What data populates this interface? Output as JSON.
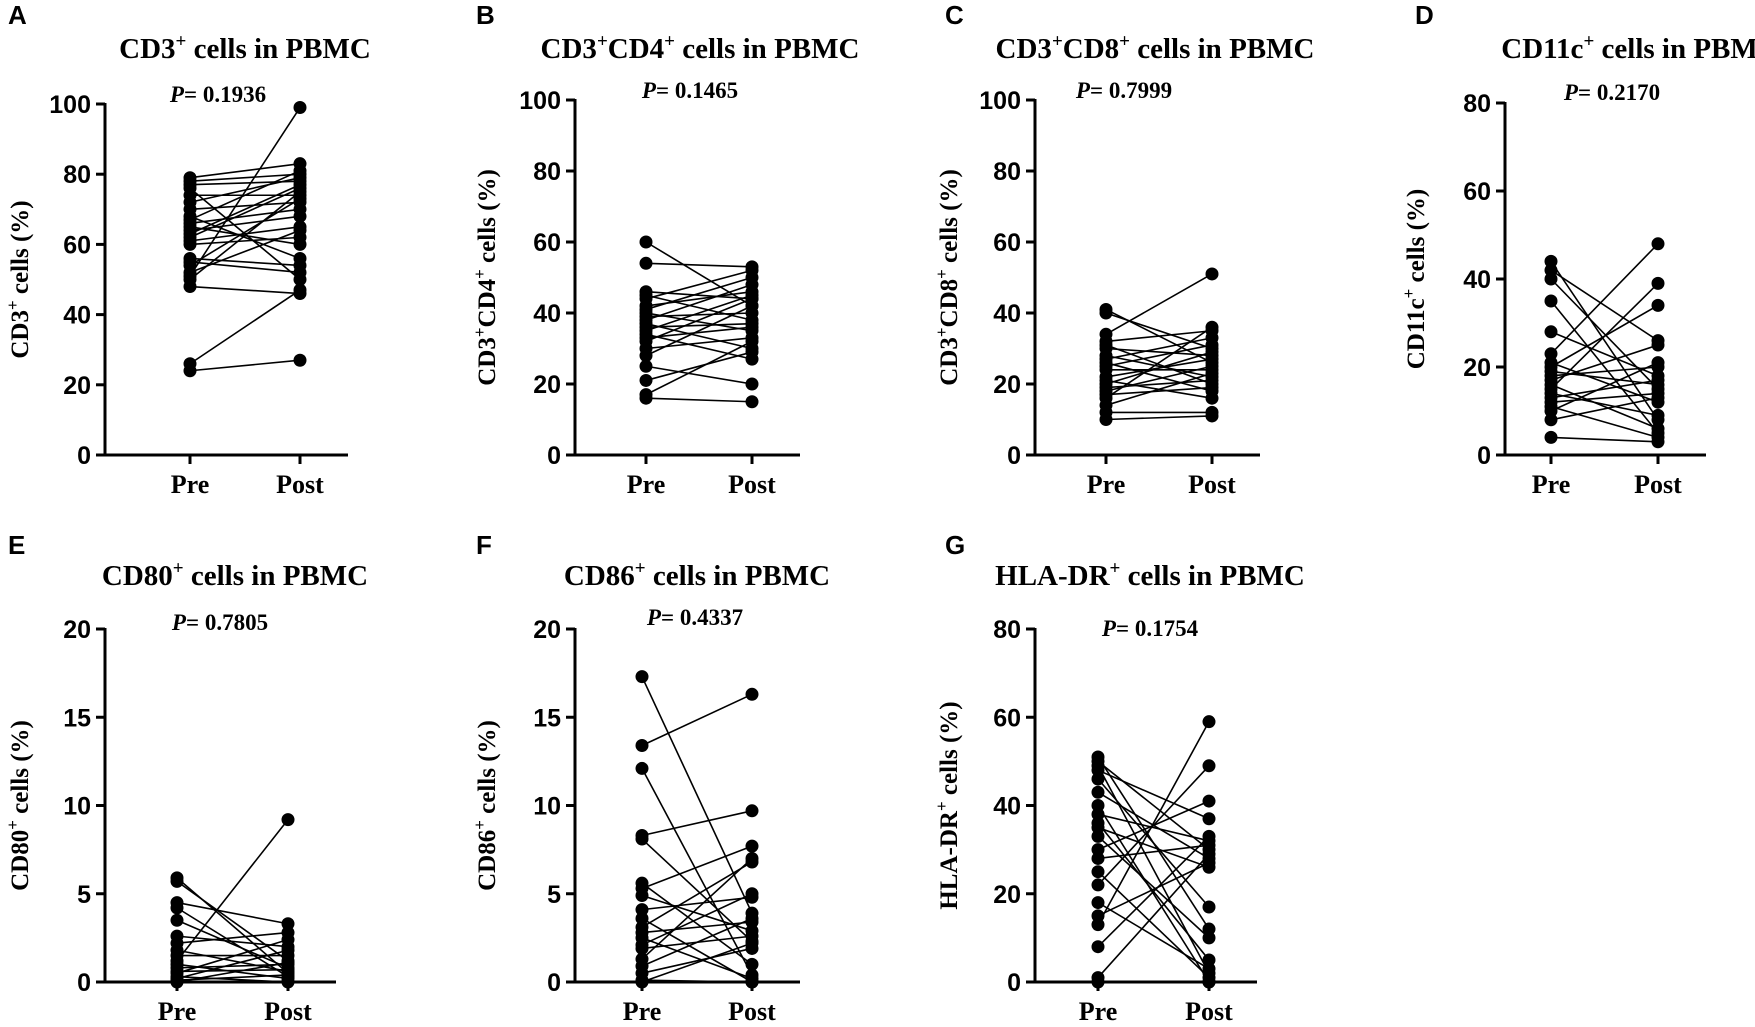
{
  "figure": {
    "panels": [
      "A",
      "B",
      "C",
      "D",
      "E",
      "F",
      "G"
    ]
  },
  "chart_data": [
    {
      "panel": "A",
      "type": "scatter",
      "subtype": "paired-before-after",
      "title": "CD3",
      "title_sup": "+",
      "title_suffix": " cells in PBMC",
      "p_label": "P",
      "p_value": "= 0.1936",
      "ylabel": "CD3",
      "ylabel_sup": "+",
      "ylabel_suffix": " cells (%)",
      "categories": [
        "Pre",
        "Post"
      ],
      "ylim": [
        0,
        100
      ],
      "yticks": [
        "0",
        "20",
        "40",
        "60",
        "80",
        "100"
      ],
      "pre": [
        79,
        78,
        77,
        76,
        74,
        72,
        70,
        68,
        67,
        66,
        65,
        64,
        63,
        62,
        61,
        60,
        56,
        55,
        54,
        52,
        51,
        50,
        48,
        26,
        24
      ],
      "post": [
        83,
        80,
        78,
        50,
        74,
        79,
        72,
        56,
        81,
        70,
        60,
        68,
        77,
        76,
        65,
        62,
        54,
        52,
        73,
        64,
        99,
        75,
        46,
        47,
        27
      ]
    },
    {
      "panel": "B",
      "type": "scatter",
      "subtype": "paired-before-after",
      "title": "CD3",
      "title_sup": "+",
      "title_mid": "CD4",
      "title_sup2": "+",
      "title_suffix": " cells in PBMC",
      "p_label": "P",
      "p_value": "= 0.1465",
      "ylabel": "CD3",
      "ylabel_sup": "+",
      "ylabel_mid": "CD4",
      "ylabel_sup2": "+",
      "ylabel_suffix": " cells (%)",
      "categories": [
        "Pre",
        "Post"
      ],
      "ylim": [
        0,
        100
      ],
      "yticks": [
        "0",
        "20",
        "40",
        "60",
        "80",
        "100"
      ],
      "pre": [
        60,
        54,
        46,
        45,
        44,
        42,
        41,
        40,
        39,
        38,
        37,
        36,
        35,
        34,
        33,
        32,
        30,
        28,
        25,
        21,
        17,
        16
      ],
      "post": [
        42,
        53,
        44,
        38,
        52,
        46,
        50,
        35,
        40,
        48,
        30,
        37,
        45,
        27,
        36,
        44,
        33,
        42,
        20,
        29,
        32,
        15
      ]
    },
    {
      "panel": "C",
      "type": "scatter",
      "subtype": "paired-before-after",
      "title": "CD3",
      "title_sup": "+",
      "title_mid": "CD8",
      "title_sup2": "+",
      "title_suffix": " cells in PBMC",
      "p_label": "P",
      "p_value": "= 0.7999",
      "ylabel": "CD3",
      "ylabel_sup": "+",
      "ylabel_mid": "CD8",
      "ylabel_sup2": "+",
      "ylabel_suffix": " cells (%)",
      "categories": [
        "Pre",
        "Post"
      ],
      "ylim": [
        0,
        100
      ],
      "yticks": [
        "0",
        "20",
        "40",
        "60",
        "80",
        "100"
      ],
      "pre": [
        41,
        40,
        34,
        32,
        31,
        30,
        28,
        27,
        26,
        25,
        24,
        22,
        21,
        20,
        19,
        18,
        17,
        16,
        14,
        12,
        10
      ],
      "post": [
        26,
        30,
        51,
        35,
        20,
        28,
        22,
        33,
        18,
        31,
        24,
        27,
        16,
        29,
        21,
        25,
        19,
        36,
        23,
        12,
        11
      ]
    },
    {
      "panel": "D",
      "type": "scatter",
      "subtype": "paired-before-after",
      "title": "CD11c",
      "title_sup": "+",
      "title_suffix": " cells in PBMC",
      "p_label": "P",
      "p_value": "= 0.2170",
      "ylabel": "CD11c",
      "ylabel_sup": "+",
      "ylabel_suffix": " cells (%)",
      "categories": [
        "Pre",
        "Post"
      ],
      "ylim": [
        0,
        80
      ],
      "yticks": [
        "0",
        "20",
        "40",
        "60",
        "80"
      ],
      "pre": [
        44,
        42,
        40,
        35,
        28,
        23,
        21,
        20,
        19,
        18,
        17,
        16,
        15,
        14,
        13,
        12,
        11,
        10,
        8,
        4
      ],
      "post": [
        8,
        26,
        15,
        5,
        18,
        48,
        12,
        34,
        16,
        20,
        25,
        6,
        39,
        9,
        17,
        14,
        4,
        21,
        13,
        3
      ]
    },
    {
      "panel": "E",
      "type": "scatter",
      "subtype": "paired-before-after",
      "title": "CD80",
      "title_sup": "+",
      "title_suffix": " cells in PBMC",
      "p_label": "P",
      "p_value": "= 0.7805",
      "ylabel": "CD80",
      "ylabel_sup": "+",
      "ylabel_suffix": " cells (%)",
      "categories": [
        "Pre",
        "Post"
      ],
      "ylim": [
        0,
        20
      ],
      "yticks": [
        "0",
        "5",
        "10",
        "15",
        "20"
      ],
      "pre": [
        5.9,
        5.7,
        4.5,
        4.2,
        3.5,
        2.6,
        2.2,
        1.8,
        1.5,
        1.2,
        1.0,
        0.8,
        0.6,
        0.5,
        0.3,
        0.2,
        0.1,
        0.0
      ],
      "post": [
        0.5,
        1.2,
        3.3,
        0.3,
        0.8,
        2.0,
        2.8,
        0.6,
        1.5,
        9.2,
        0.2,
        1.0,
        0.7,
        2.4,
        0.0,
        1.8,
        0.4,
        1.1
      ]
    },
    {
      "panel": "F",
      "type": "scatter",
      "subtype": "paired-before-after",
      "title": "CD86",
      "title_sup": "+",
      "title_suffix": " cells in PBMC",
      "p_label": "P",
      "p_value": "= 0.4337",
      "ylabel": "CD86",
      "ylabel_sup": "+",
      "ylabel_suffix": " cells (%)",
      "categories": [
        "Pre",
        "Post"
      ],
      "ylim": [
        0,
        20
      ],
      "yticks": [
        "0",
        "5",
        "10",
        "15",
        "20"
      ],
      "pre": [
        17.3,
        13.4,
        12.1,
        8.3,
        8.1,
        5.6,
        5.3,
        4.9,
        4.1,
        3.6,
        3.1,
        2.8,
        2.5,
        2.1,
        1.9,
        1.3,
        0.9,
        0.5,
        0.1,
        0.0
      ],
      "post": [
        3.9,
        16.3,
        0.4,
        9.7,
        2.3,
        1.0,
        7.7,
        2.9,
        4.8,
        0.0,
        6.8,
        3.4,
        0.2,
        5.0,
        2.6,
        7.0,
        3.6,
        1.9,
        0.0,
        2.2
      ]
    },
    {
      "panel": "G",
      "type": "scatter",
      "subtype": "paired-before-after",
      "title": "HLA-DR",
      "title_sup": "+",
      "title_suffix": " cells in PBMC",
      "p_label": "P",
      "p_value": "= 0.1754",
      "ylabel": "HLA-DR",
      "ylabel_sup": "+",
      "ylabel_suffix": " cells (%)",
      "categories": [
        "Pre",
        "Post"
      ],
      "ylim": [
        0,
        80
      ],
      "yticks": [
        "0",
        "20",
        "40",
        "60",
        "80"
      ],
      "pre": [
        51,
        50,
        49,
        48,
        46,
        43,
        40,
        38,
        36,
        35,
        33,
        30,
        28,
        25,
        22,
        18,
        15,
        13,
        8,
        1,
        0
      ],
      "post": [
        12,
        30,
        2,
        37,
        17,
        28,
        0,
        32,
        5,
        26,
        10,
        41,
        31,
        1,
        49,
        3,
        27,
        59,
        33,
        29,
        0
      ]
    }
  ]
}
